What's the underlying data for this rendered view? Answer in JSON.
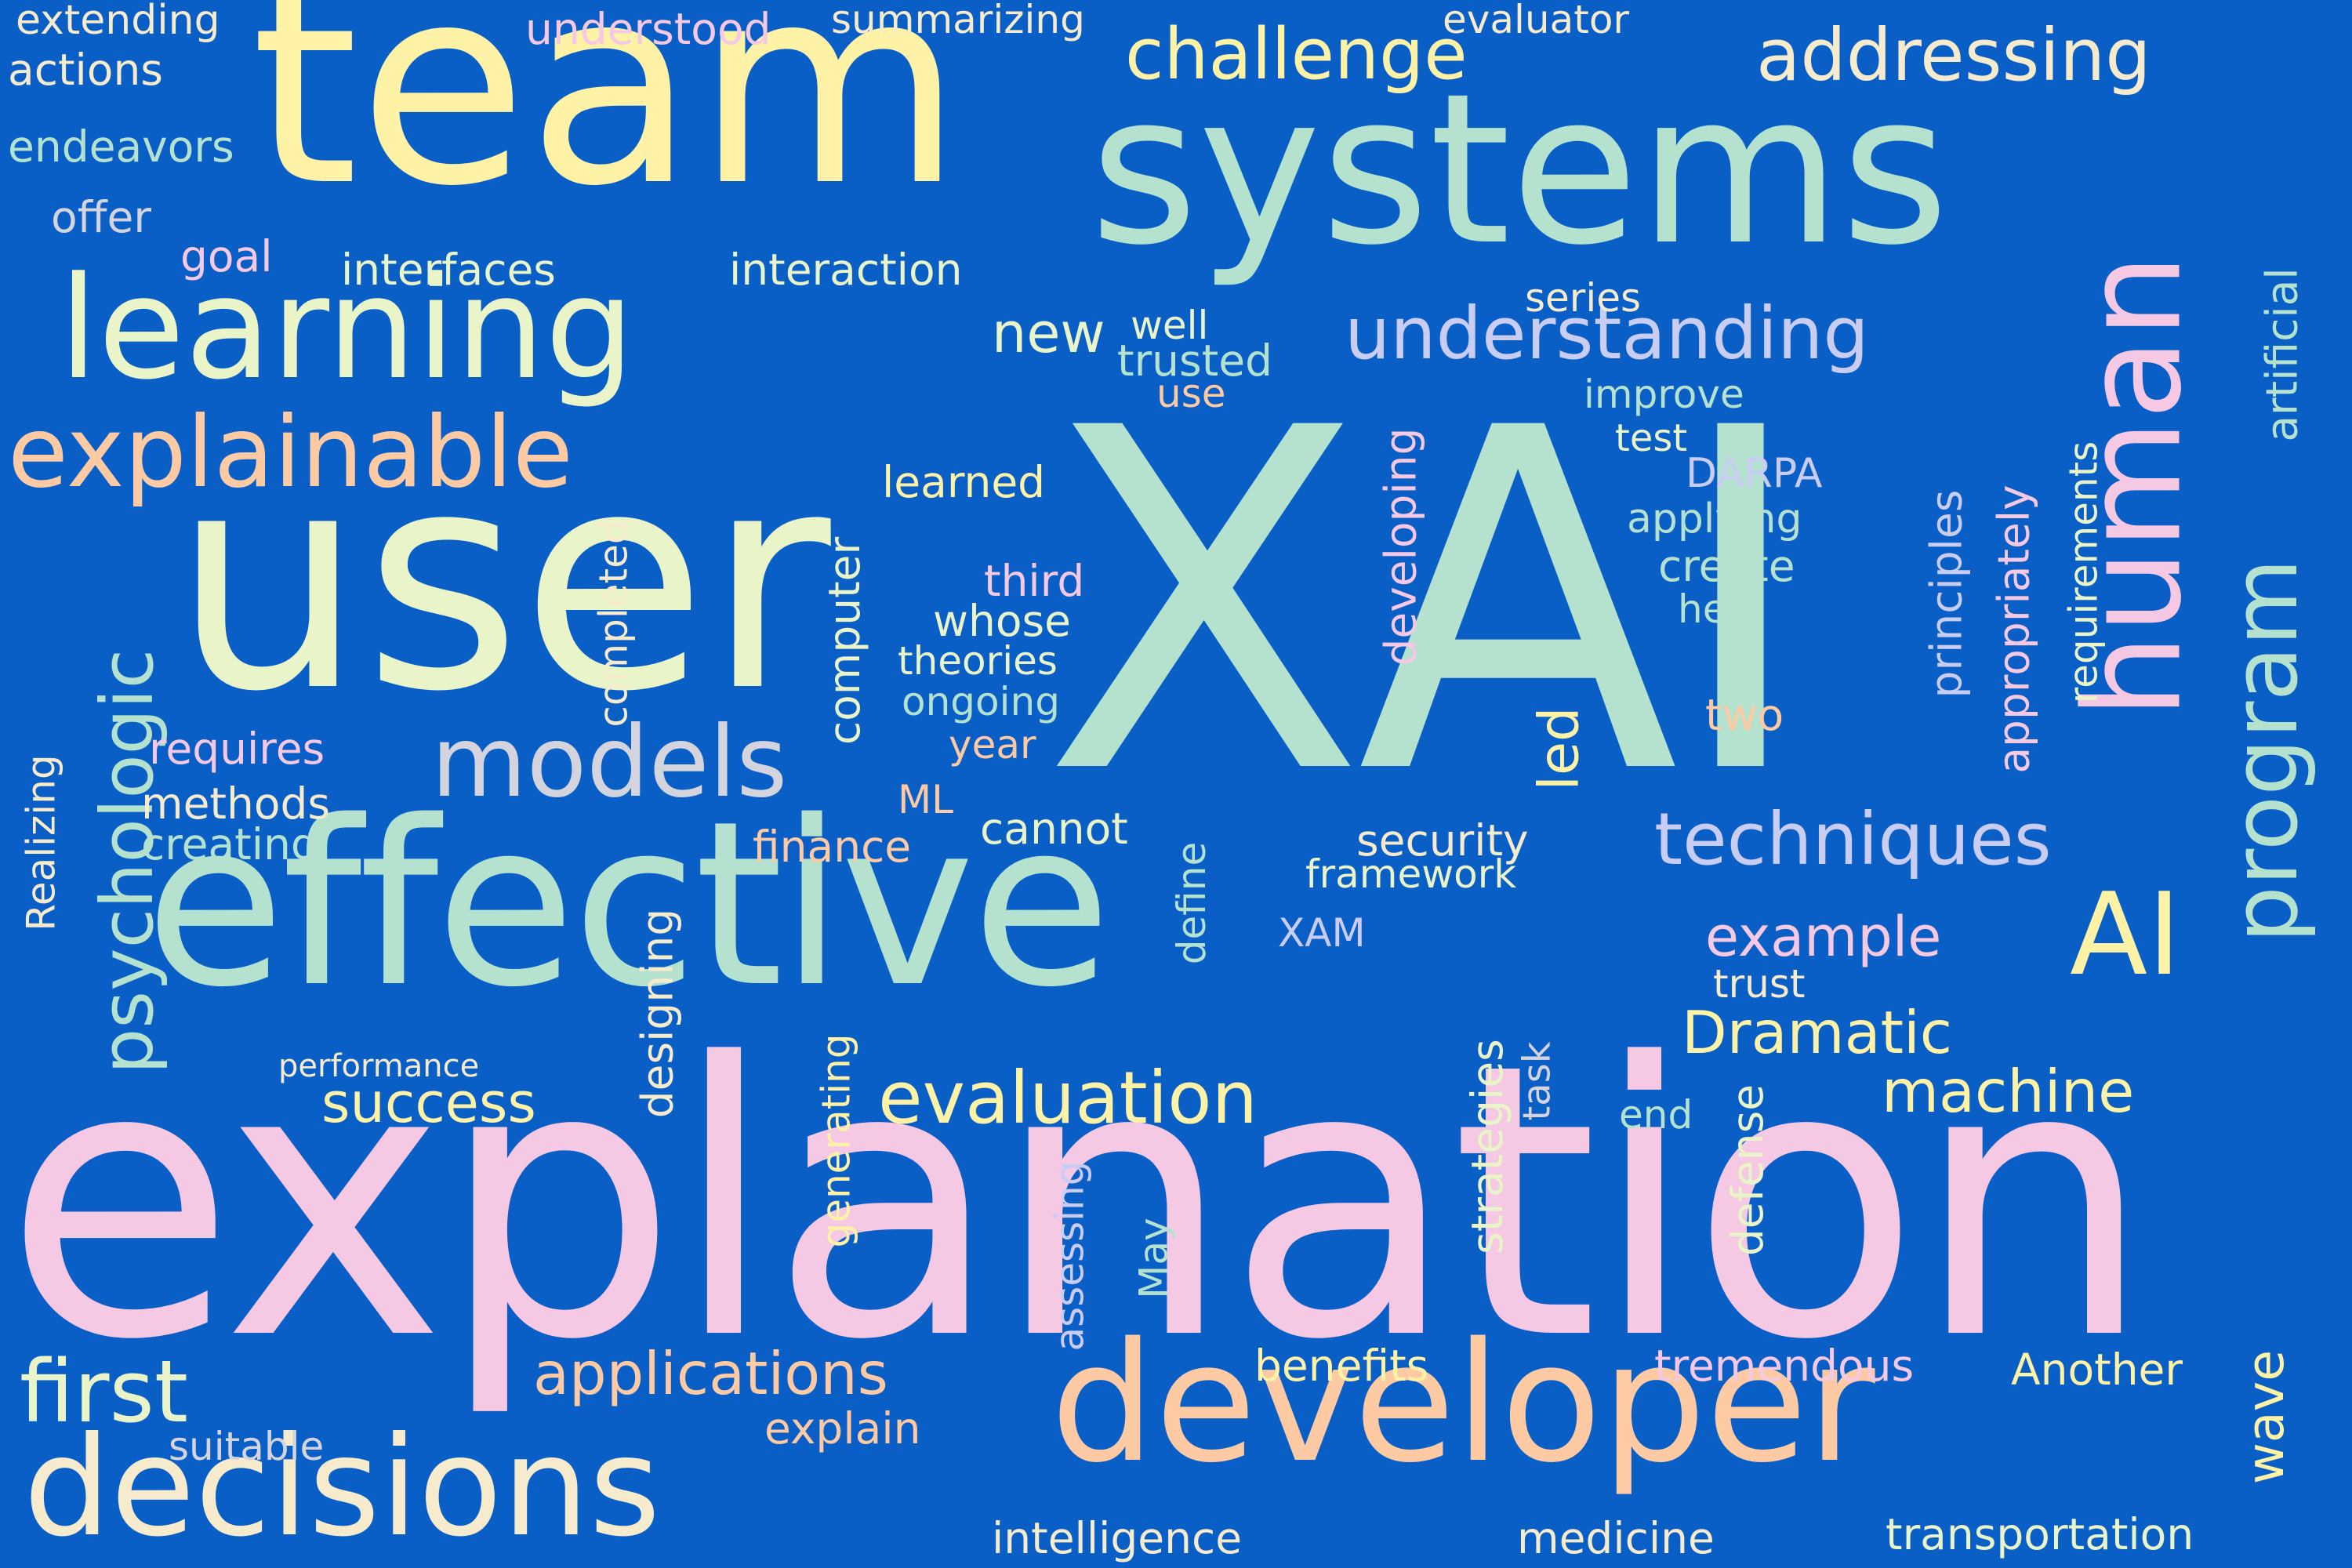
{
  "background_color": "#0a5fc7",
  "palette": {
    "yellow": "#fdf2a6",
    "mint": "#b4e2cf",
    "pale_green": "#e9f5c8",
    "peach": "#fdcaa3",
    "pink": "#f5c8e4",
    "lavender": "#c9cdf4",
    "cream": "#f6ebcc",
    "gray": "#d4d4de"
  },
  "words": [
    {
      "text": "XAI",
      "color": "#b4e2cf"
    },
    {
      "text": "explanation",
      "color": "#f5c8e4"
    },
    {
      "text": "user",
      "color": "#e9f5c8"
    },
    {
      "text": "team",
      "color": "#fdf2a6"
    },
    {
      "text": "systems",
      "color": "#b4e2cf"
    },
    {
      "text": "effective",
      "color": "#b4e2cf"
    },
    {
      "text": "developer",
      "color": "#fdcaa3"
    },
    {
      "text": "learning",
      "color": "#e9f5c8"
    },
    {
      "text": "decisions",
      "color": "#f6ebcc"
    },
    {
      "text": "human",
      "color": "#f5c8e4"
    },
    {
      "text": "explainable",
      "color": "#fdcaa3"
    },
    {
      "text": "program",
      "color": "#b4e2cf"
    },
    {
      "text": "psychologic",
      "color": "#b4e2cf"
    },
    {
      "text": "models",
      "color": "#d4d4de"
    },
    {
      "text": "AI",
      "color": "#fdf2a6"
    },
    {
      "text": "understanding",
      "color": "#c9cdf4"
    },
    {
      "text": "techniques",
      "color": "#c9cdf4"
    },
    {
      "text": "evaluation",
      "color": "#fdf2a6"
    },
    {
      "text": "addressing",
      "color": "#f6ebcc"
    },
    {
      "text": "challenge",
      "color": "#fdf2a6"
    },
    {
      "text": "first",
      "color": "#e9f5c8"
    },
    {
      "text": "applications",
      "color": "#fdcaa3"
    },
    {
      "text": "Dramatic",
      "color": "#fdf2a6"
    },
    {
      "text": "machine",
      "color": "#fdf2a6"
    },
    {
      "text": "success",
      "color": "#fdf2a6"
    },
    {
      "text": "example",
      "color": "#f5c8e4"
    },
    {
      "text": "new",
      "color": "#e9f5c8"
    },
    {
      "text": "led",
      "color": "#fdf2a6"
    },
    {
      "text": "wave",
      "color": "#fdf2a6"
    },
    {
      "text": "Realizing",
      "color": "#f6ebcc"
    },
    {
      "text": "computer",
      "color": "#e9f5c8"
    },
    {
      "text": "developing",
      "color": "#f5c8e4"
    },
    {
      "text": "designing",
      "color": "#f6ebcc"
    },
    {
      "text": "generating",
      "color": "#fdf2a6"
    },
    {
      "text": "strategies",
      "color": "#e9f5c8"
    },
    {
      "text": "defense",
      "color": "#e9f5c8"
    },
    {
      "text": "completed",
      "color": "#f6ebcc"
    },
    {
      "text": "principles",
      "color": "#c9cdf4"
    },
    {
      "text": "appropriately",
      "color": "#f5c8e4"
    },
    {
      "text": "requirements",
      "color": "#e9f5c8"
    },
    {
      "text": "artificial",
      "color": "#b4e2cf"
    },
    {
      "text": "assessing",
      "color": "#c9cdf4"
    },
    {
      "text": "define",
      "color": "#b4e2cf"
    },
    {
      "text": "task",
      "color": "#d4d4de"
    },
    {
      "text": "May",
      "color": "#b4e2cf"
    },
    {
      "text": "transportation",
      "color": "#e9f5c8"
    },
    {
      "text": "medicine",
      "color": "#f6ebcc"
    },
    {
      "text": "intelligence",
      "color": "#f6ebcc"
    },
    {
      "text": "tremendous",
      "color": "#f5c8e4"
    },
    {
      "text": "Another",
      "color": "#fdf2a6"
    },
    {
      "text": "benefits",
      "color": "#fdf2a6"
    },
    {
      "text": "explain",
      "color": "#fdcaa3"
    },
    {
      "text": "suitable",
      "color": "#d4d4de"
    },
    {
      "text": "end",
      "color": "#b4e2cf"
    },
    {
      "text": "trust",
      "color": "#f6ebcc"
    },
    {
      "text": "XAM",
      "color": "#c9cdf4"
    },
    {
      "text": "framework",
      "color": "#e9f5c8"
    },
    {
      "text": "security",
      "color": "#f6ebcc"
    },
    {
      "text": "cannot",
      "color": "#e9f5c8"
    },
    {
      "text": "finance",
      "color": "#fdcaa3"
    },
    {
      "text": "ML",
      "color": "#fdcaa3"
    },
    {
      "text": "year",
      "color": "#fdcaa3"
    },
    {
      "text": "ongoing",
      "color": "#b4e2cf"
    },
    {
      "text": "theories",
      "color": "#e9f5c8"
    },
    {
      "text": "whose",
      "color": "#e9f5c8"
    },
    {
      "text": "third",
      "color": "#f5c8e4"
    },
    {
      "text": "learned",
      "color": "#fdf2a6"
    },
    {
      "text": "use",
      "color": "#fdcaa3"
    },
    {
      "text": "trusted",
      "color": "#b4e2cf"
    },
    {
      "text": "well",
      "color": "#e9f5c8"
    },
    {
      "text": "two",
      "color": "#fdcaa3"
    },
    {
      "text": "help",
      "color": "#b4e2cf"
    },
    {
      "text": "create",
      "color": "#b4e2cf"
    },
    {
      "text": "applying",
      "color": "#b4e2cf"
    },
    {
      "text": "DARPA",
      "color": "#c9cdf4"
    },
    {
      "text": "test",
      "color": "#e9f5c8"
    },
    {
      "text": "improve",
      "color": "#b4e2cf"
    },
    {
      "text": "series",
      "color": "#f6ebcc"
    },
    {
      "text": "interaction",
      "color": "#e9f5c8"
    },
    {
      "text": "interfaces",
      "color": "#e9f5c8"
    },
    {
      "text": "goal",
      "color": "#f5c8e4"
    },
    {
      "text": "offer",
      "color": "#d4d4de"
    },
    {
      "text": "endeavors",
      "color": "#b4e2cf"
    },
    {
      "text": "actions",
      "color": "#f6ebcc"
    },
    {
      "text": "extending",
      "color": "#f6ebcc"
    },
    {
      "text": "understood",
      "color": "#f5c8e4"
    },
    {
      "text": "summarizing",
      "color": "#f6ebcc"
    },
    {
      "text": "evaluator",
      "color": "#f6ebcc"
    },
    {
      "text": "requires",
      "color": "#f5c8e4"
    },
    {
      "text": "methods",
      "color": "#f6ebcc"
    },
    {
      "text": "creating",
      "color": "#b4e2cf"
    },
    {
      "text": "performance",
      "color": "#f6ebcc"
    }
  ]
}
